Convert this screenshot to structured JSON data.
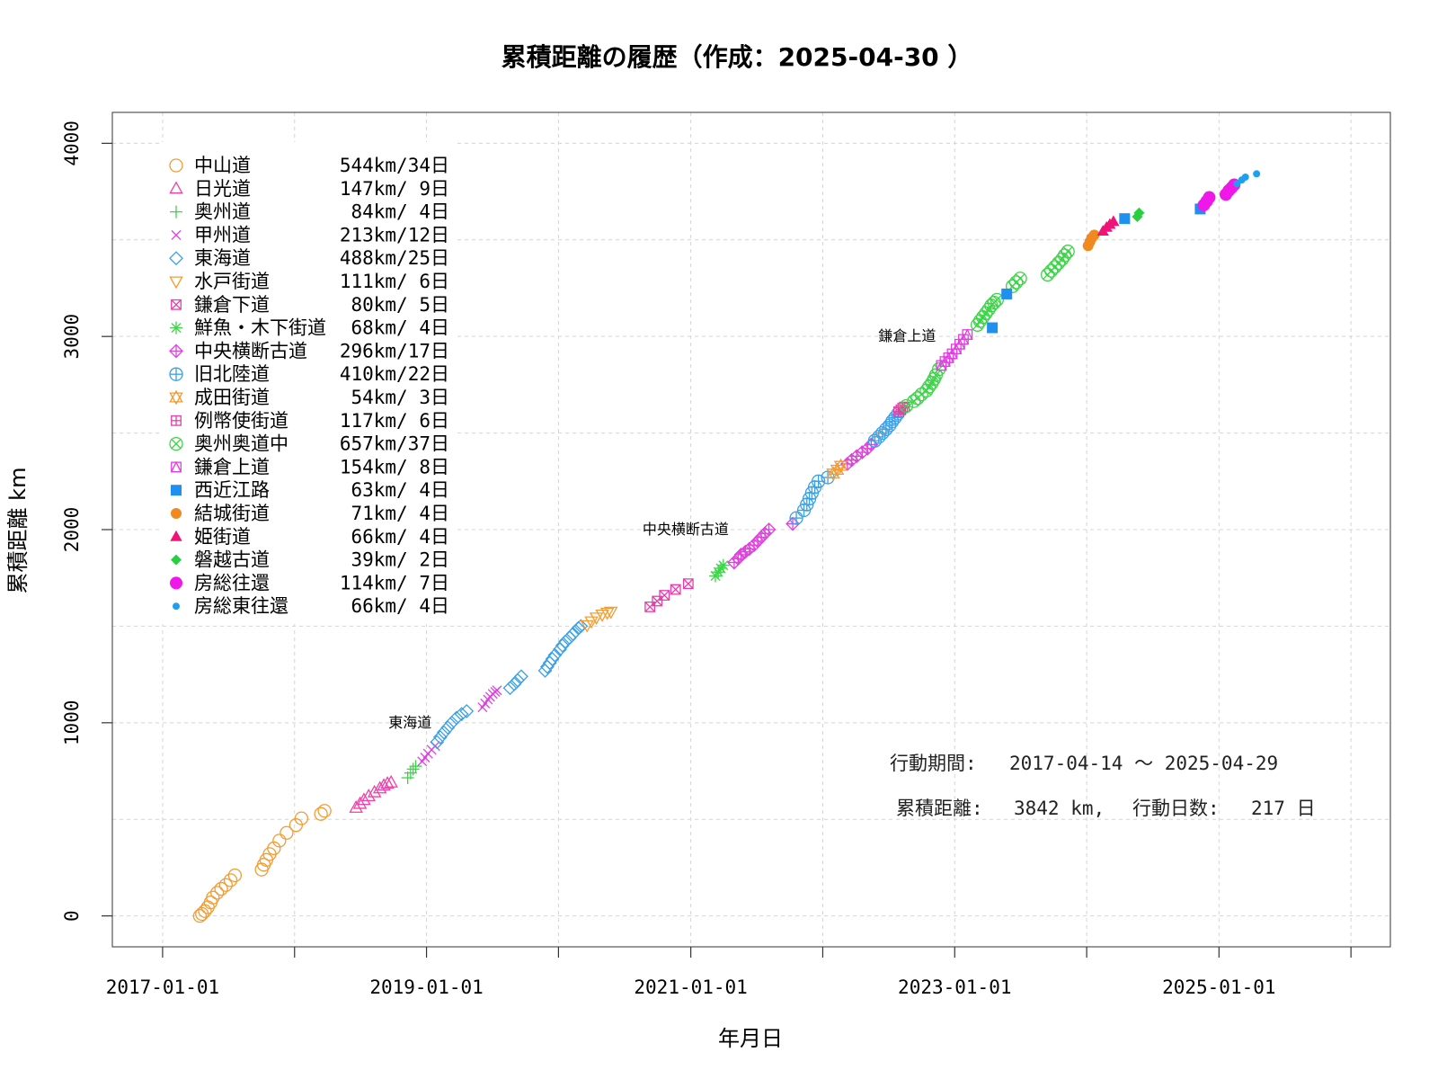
{
  "chart_data": {
    "type": "scatter",
    "title": "累積距離の履歴（作成：2025-04-30 ）",
    "xlabel": "年月日",
    "ylabel": "累積距離 km",
    "xlim": [
      "2016-08-15",
      "2026-04-20"
    ],
    "ylim": [
      -160,
      4160
    ],
    "x_ticks": [
      "2017-01-01",
      "2018-01-01",
      "2019-01-01",
      "2020-01-01",
      "2021-01-01",
      "2022-01-01",
      "2023-01-01",
      "2024-01-01",
      "2025-01-01",
      "2026-01-01"
    ],
    "x_tick_labels": [
      "2017-01-01",
      "",
      "2019-01-01",
      "",
      "2021-01-01",
      "",
      "2023-01-01",
      "",
      "2025-01-01",
      ""
    ],
    "y_ticks": [
      0,
      1000,
      2000,
      3000,
      4000
    ],
    "grid": true,
    "legend_position": "top-left",
    "series": [
      {
        "name": "中山道",
        "summary": "544km/34日",
        "marker": "circle-open",
        "color": "#f39c33",
        "points": [
          [
            "2017-04-14",
            0
          ],
          [
            "2017-04-20",
            10
          ],
          [
            "2017-04-28",
            25
          ],
          [
            "2017-05-06",
            45
          ],
          [
            "2017-05-14",
            70
          ],
          [
            "2017-05-20",
            95
          ],
          [
            "2017-06-01",
            120
          ],
          [
            "2017-06-12",
            140
          ],
          [
            "2017-06-25",
            160
          ],
          [
            "2017-07-08",
            185
          ],
          [
            "2017-07-20",
            210
          ],
          [
            "2017-10-02",
            240
          ],
          [
            "2017-10-08",
            265
          ],
          [
            "2017-10-15",
            290
          ],
          [
            "2017-10-24",
            320
          ],
          [
            "2017-11-05",
            350
          ],
          [
            "2017-11-20",
            390
          ],
          [
            "2017-12-10",
            430
          ],
          [
            "2018-01-05",
            470
          ],
          [
            "2018-01-20",
            505
          ],
          [
            "2018-03-15",
            528
          ],
          [
            "2018-03-25",
            544
          ]
        ]
      },
      {
        "name": "日光道",
        "summary": "147km/ 9日",
        "marker": "triangle-open",
        "color": "#f03fa8",
        "points": [
          [
            "2018-06-20",
            560
          ],
          [
            "2018-07-01",
            580
          ],
          [
            "2018-07-12",
            600
          ],
          [
            "2018-07-25",
            620
          ],
          [
            "2018-08-10",
            640
          ],
          [
            "2018-08-25",
            660
          ],
          [
            "2018-09-05",
            675
          ],
          [
            "2018-09-15",
            685
          ],
          [
            "2018-09-25",
            691
          ]
        ]
      },
      {
        "name": "奥州道",
        "summary": " 84km/ 4日",
        "marker": "plus",
        "color": "#3dd448",
        "points": [
          [
            "2018-11-10",
            715
          ],
          [
            "2018-11-18",
            740
          ],
          [
            "2018-11-25",
            760
          ],
          [
            "2018-12-02",
            775
          ]
        ]
      },
      {
        "name": "甲州道",
        "summary": "213km/12日",
        "marker": "cross",
        "color": "#e040e0",
        "points": [
          [
            "2018-12-20",
            800
          ],
          [
            "2018-12-28",
            820
          ],
          [
            "2019-01-05",
            840
          ],
          [
            "2019-01-15",
            860
          ],
          [
            "2019-01-25",
            880
          ],
          [
            "2019-06-05",
            1080
          ],
          [
            "2019-06-12",
            1100
          ],
          [
            "2019-06-20",
            1120
          ],
          [
            "2019-06-26",
            1135
          ],
          [
            "2019-07-03",
            1150
          ],
          [
            "2019-07-10",
            1160
          ],
          [
            "2019-07-15",
            1168
          ]
        ]
      },
      {
        "name": "東海道",
        "summary": "488km/25日",
        "marker": "diamond-open",
        "color": "#3aa0e8",
        "points": [
          [
            "2019-01-30",
            900
          ],
          [
            "2019-02-08",
            925
          ],
          [
            "2019-02-18",
            950
          ],
          [
            "2019-03-01",
            975
          ],
          [
            "2019-03-12",
            1000
          ],
          [
            "2019-03-25",
            1025
          ],
          [
            "2019-04-08",
            1045
          ],
          [
            "2019-04-22",
            1060
          ],
          [
            "2019-08-20",
            1180
          ],
          [
            "2019-09-01",
            1200
          ],
          [
            "2019-09-10",
            1220
          ],
          [
            "2019-09-20",
            1240
          ],
          [
            "2019-11-25",
            1270
          ],
          [
            "2019-12-01",
            1290
          ],
          [
            "2019-12-08",
            1310
          ],
          [
            "2019-12-15",
            1330
          ],
          [
            "2019-12-22",
            1350
          ],
          [
            "2020-01-05",
            1380
          ],
          [
            "2020-01-12",
            1400
          ],
          [
            "2020-01-20",
            1420
          ],
          [
            "2020-02-01",
            1440
          ],
          [
            "2020-02-10",
            1460
          ],
          [
            "2020-02-18",
            1475
          ],
          [
            "2020-02-25",
            1490
          ],
          [
            "2020-03-03",
            1500
          ]
        ]
      },
      {
        "name": "水戸街道",
        "summary": "111km/ 6日",
        "marker": "triangle-down-open",
        "color": "#f39c33",
        "points": [
          [
            "2020-03-20",
            1505
          ],
          [
            "2020-04-01",
            1525
          ],
          [
            "2020-04-15",
            1545
          ],
          [
            "2020-05-01",
            1560
          ],
          [
            "2020-05-15",
            1570
          ],
          [
            "2020-05-25",
            1575
          ]
        ]
      },
      {
        "name": "鎌倉下道",
        "summary": " 80km/ 5日",
        "marker": "square-x",
        "color": "#e63da8",
        "points": [
          [
            "2020-09-10",
            1600
          ],
          [
            "2020-09-30",
            1630
          ],
          [
            "2020-10-20",
            1660
          ],
          [
            "2020-11-20",
            1690
          ],
          [
            "2020-12-25",
            1720
          ]
        ]
      },
      {
        "name": "鮮魚・木下街道",
        "summary": " 68km/ 4日",
        "marker": "asterisk",
        "color": "#3dd448",
        "points": [
          [
            "2021-03-10",
            1760
          ],
          [
            "2021-03-18",
            1780
          ],
          [
            "2021-03-25",
            1800
          ],
          [
            "2021-04-01",
            1815
          ]
        ]
      },
      {
        "name": "中央横断古道",
        "summary": "296km/17日",
        "marker": "diamond-plus",
        "color": "#e040e0",
        "points": [
          [
            "2021-05-01",
            1830
          ],
          [
            "2021-05-12",
            1850
          ],
          [
            "2021-05-20",
            1870
          ],
          [
            "2021-06-01",
            1885
          ],
          [
            "2021-06-12",
            1900
          ],
          [
            "2021-06-25",
            1920
          ],
          [
            "2021-07-05",
            1940
          ],
          [
            "2021-07-15",
            1960
          ],
          [
            "2021-07-25",
            1980
          ],
          [
            "2021-08-05",
            2000
          ],
          [
            "2021-10-10",
            2030
          ],
          [
            "2022-03-10",
            2340
          ],
          [
            "2022-03-22",
            2360
          ],
          [
            "2022-04-05",
            2380
          ],
          [
            "2022-04-20",
            2400
          ],
          [
            "2022-05-05",
            2420
          ],
          [
            "2022-05-15",
            2440
          ]
        ]
      },
      {
        "name": "旧北陸道",
        "summary": "410km/22日",
        "marker": "circle-plus",
        "color": "#3aa0e8",
        "points": [
          [
            "2021-10-20",
            2060
          ],
          [
            "2021-11-10",
            2100
          ],
          [
            "2021-11-18",
            2130
          ],
          [
            "2021-11-25",
            2160
          ],
          [
            "2021-12-02",
            2190
          ],
          [
            "2021-12-10",
            2220
          ],
          [
            "2021-12-20",
            2250
          ],
          [
            "2022-01-15",
            2270
          ],
          [
            "2022-05-25",
            2460
          ],
          [
            "2022-06-05",
            2480
          ],
          [
            "2022-06-15",
            2500
          ],
          [
            "2022-06-25",
            2520
          ],
          [
            "2022-07-05",
            2540
          ],
          [
            "2022-07-12",
            2560
          ],
          [
            "2022-07-20",
            2580
          ],
          [
            "2022-07-28",
            2600
          ]
        ]
      },
      {
        "name": "成田街道",
        "summary": " 54km/ 3日",
        "marker": "star-of-david",
        "color": "#f39c33",
        "points": [
          [
            "2022-01-30",
            2290
          ],
          [
            "2022-02-10",
            2310
          ],
          [
            "2022-02-20",
            2330
          ]
        ]
      },
      {
        "name": "例幣使街道",
        "summary": "117km/ 6日",
        "marker": "square-plus",
        "color": "#e63da8",
        "points": [
          [
            "2022-07-30",
            2610
          ],
          [
            "2022-08-05",
            2620
          ],
          [
            "2022-08-10",
            2630
          ],
          [
            "2022-08-15",
            2635
          ]
        ]
      },
      {
        "name": "奥州奥道中",
        "summary": "657km/37日",
        "marker": "circle-x",
        "color": "#3dd448",
        "points": [
          [
            "2022-08-20",
            2640
          ],
          [
            "2022-09-10",
            2665
          ],
          [
            "2022-09-20",
            2680
          ],
          [
            "2022-10-01",
            2700
          ],
          [
            "2022-10-15",
            2720
          ],
          [
            "2022-10-22",
            2740
          ],
          [
            "2022-10-30",
            2760
          ],
          [
            "2022-11-05",
            2780
          ],
          [
            "2022-11-10",
            2800
          ],
          [
            "2022-11-18",
            2830
          ],
          [
            "2023-03-05",
            3060
          ],
          [
            "2023-03-12",
            3080
          ],
          [
            "2023-03-20",
            3100
          ],
          [
            "2023-03-28",
            3120
          ],
          [
            "2023-04-05",
            3140
          ],
          [
            "2023-04-12",
            3160
          ],
          [
            "2023-04-20",
            3175
          ],
          [
            "2023-04-28",
            3190
          ],
          [
            "2023-06-10",
            3260
          ],
          [
            "2023-06-20",
            3280
          ],
          [
            "2023-07-01",
            3300
          ],
          [
            "2023-09-15",
            3320
          ],
          [
            "2023-09-25",
            3340
          ],
          [
            "2023-10-05",
            3360
          ],
          [
            "2023-10-15",
            3380
          ],
          [
            "2023-10-25",
            3400
          ],
          [
            "2023-11-01",
            3420
          ],
          [
            "2023-11-10",
            3440
          ]
        ]
      },
      {
        "name": "鎌倉上道",
        "summary": "154km/ 8日",
        "marker": "square-star",
        "color": "#e040e0",
        "points": [
          [
            "2022-11-25",
            2850
          ],
          [
            "2022-12-05",
            2870
          ],
          [
            "2022-12-15",
            2890
          ],
          [
            "2022-12-25",
            2910
          ],
          [
            "2023-01-05",
            2935
          ],
          [
            "2023-01-15",
            2960
          ],
          [
            "2023-01-25",
            2985
          ],
          [
            "2023-02-05",
            3010
          ]
        ]
      },
      {
        "name": "西近江路",
        "summary": " 63km/ 4日",
        "marker": "square-filled",
        "color": "#1e90f0",
        "points": [
          [
            "2023-04-15",
            3045
          ],
          [
            "2023-05-25",
            3220
          ],
          [
            "2024-04-15",
            3610
          ],
          [
            "2024-11-10",
            3660
          ]
        ]
      },
      {
        "name": "結城街道",
        "summary": " 71km/ 4日",
        "marker": "circle-filled",
        "color": "#f08a20",
        "points": [
          [
            "2024-01-05",
            3470
          ],
          [
            "2024-01-10",
            3490
          ],
          [
            "2024-01-15",
            3510
          ],
          [
            "2024-01-22",
            3525
          ]
        ]
      },
      {
        "name": "姫街道",
        "summary": " 66km/ 4日",
        "marker": "triangle-filled",
        "color": "#f0147a",
        "points": [
          [
            "2024-02-15",
            3545
          ],
          [
            "2024-02-25",
            3565
          ],
          [
            "2024-03-05",
            3580
          ],
          [
            "2024-03-15",
            3595
          ]
        ]
      },
      {
        "name": "磐越古道",
        "summary": " 39km/ 2日",
        "marker": "diamond-filled",
        "color": "#28d040",
        "points": [
          [
            "2024-05-20",
            3620
          ],
          [
            "2024-05-25",
            3640
          ]
        ]
      },
      {
        "name": "房総往還",
        "summary": "114km/ 7日",
        "marker": "circle-filled-large",
        "color": "#f018e8",
        "points": [
          [
            "2024-11-20",
            3680
          ],
          [
            "2024-11-28",
            3700
          ],
          [
            "2024-12-05",
            3720
          ],
          [
            "2025-01-20",
            3735
          ],
          [
            "2025-01-28",
            3755
          ],
          [
            "2025-02-05",
            3770
          ],
          [
            "2025-02-12",
            3785
          ]
        ]
      },
      {
        "name": "房総東往還",
        "summary": " 66km/ 4日",
        "marker": "dot",
        "color": "#1ea0f0",
        "points": [
          [
            "2025-02-20",
            3790
          ],
          [
            "2025-03-05",
            3810
          ],
          [
            "2025-03-15",
            3825
          ],
          [
            "2025-04-15",
            3842
          ]
        ]
      }
    ],
    "annotations": [
      {
        "text": "東海道",
        "x": "2019-01-30",
        "y": 1000
      },
      {
        "text": "中央横断古道",
        "x": "2021-05-01",
        "y": 2000
      },
      {
        "text": "鎌倉上道",
        "x": "2022-11-25",
        "y": 3000
      }
    ],
    "info": {
      "period_label": "行動期間:",
      "period_value": "2017-04-14 〜 2025-04-29",
      "distance_label": "累積距離:",
      "distance_value": "3842 km,",
      "days_label": "行動日数:",
      "days_value": "217 日"
    }
  }
}
